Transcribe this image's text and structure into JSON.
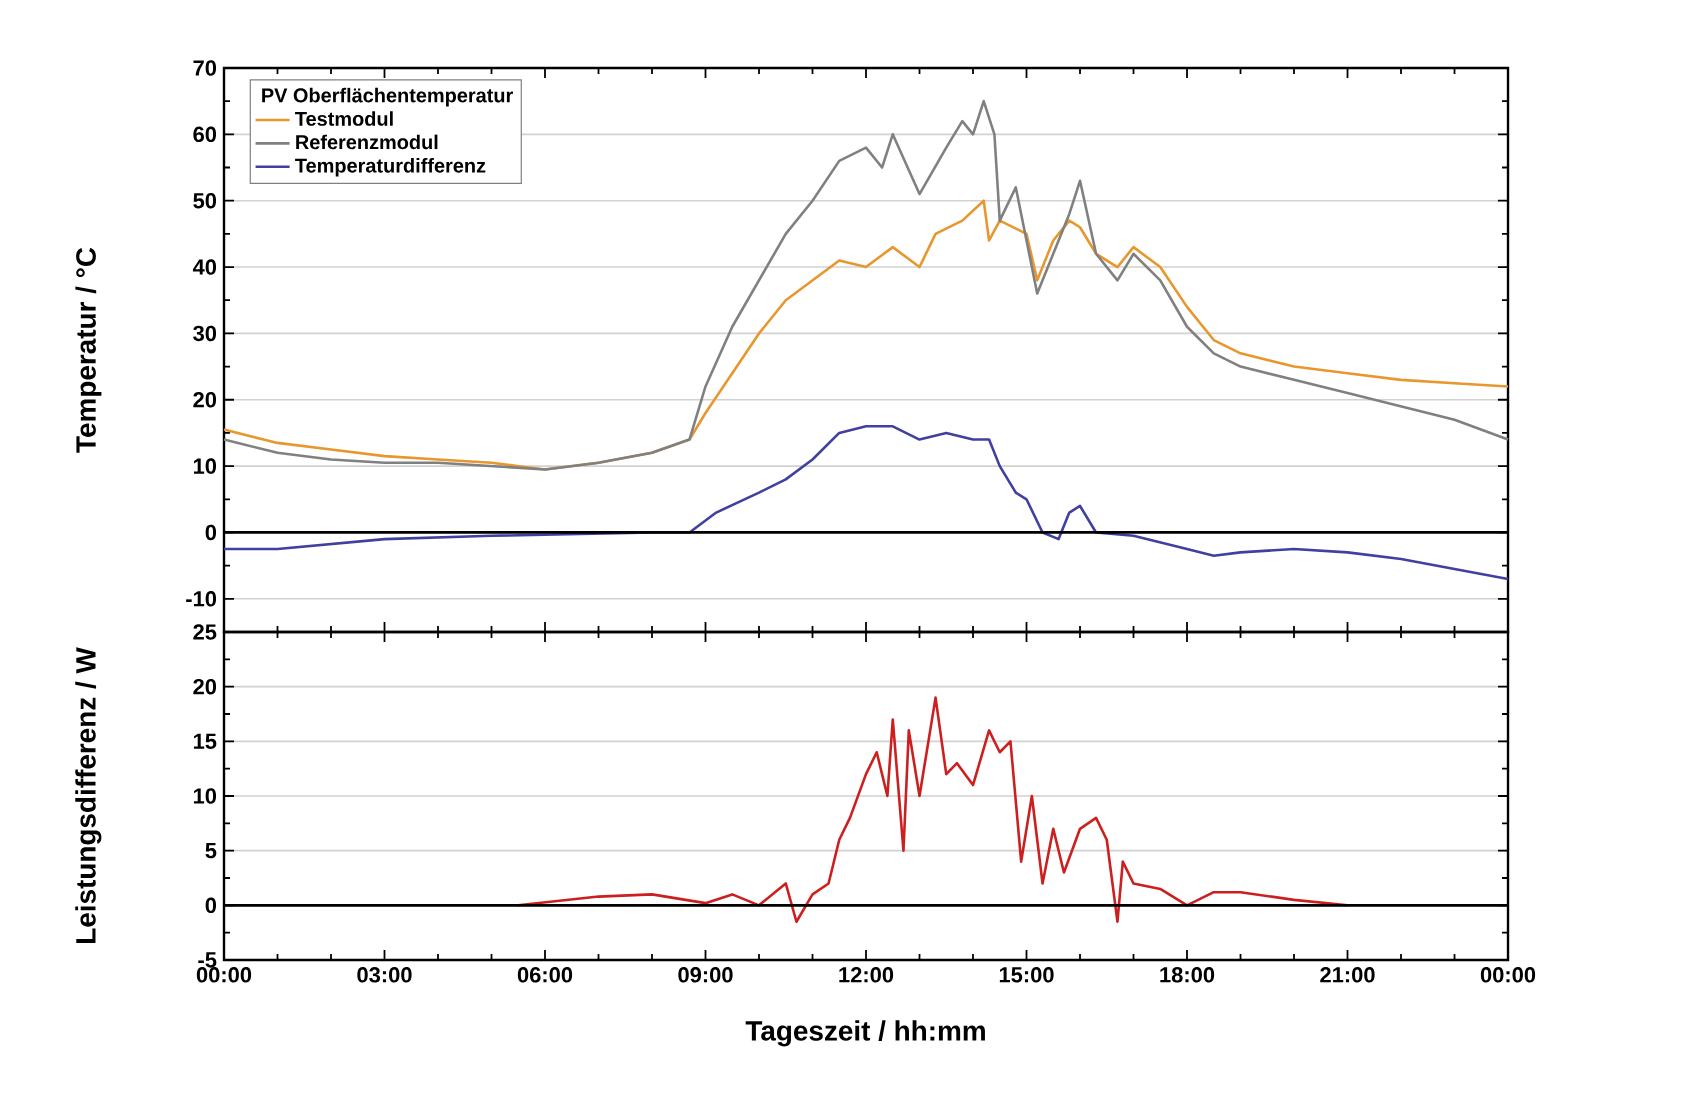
{
  "chart_data": [
    {
      "type": "line",
      "ylabel": "Temperatur / °C",
      "legend_title": "PV Oberflächentemperatur",
      "legend": "top left",
      "grid": "y",
      "tick_labels": "y",
      "line_style": "solid",
      "xlim": [
        0,
        24
      ],
      "ylim": [
        -15,
        70
      ],
      "xticks": [
        {
          "value": 0,
          "label": null
        },
        {
          "value": 3,
          "label": null
        },
        {
          "value": 6,
          "label": null
        },
        {
          "value": 9,
          "label": null
        },
        {
          "value": 12,
          "label": null
        },
        {
          "value": 15,
          "label": null
        },
        {
          "value": 18,
          "label": null
        },
        {
          "value": 21,
          "label": null
        },
        {
          "value": 24,
          "label": null
        }
      ],
      "yticks": [
        -10,
        0,
        10,
        20,
        30,
        40,
        50,
        60,
        70
      ],
      "ref_lines": [
        {
          "axis": "y",
          "value": 0,
          "color": "#000000"
        }
      ],
      "series": [
        {
          "name": "Testmodul",
          "color": "#e8962e",
          "x": [
            0,
            1,
            2,
            3,
            4,
            5,
            5.5,
            6,
            7,
            8,
            8.7,
            9,
            9.5,
            10,
            10.5,
            11,
            11.5,
            12,
            12.5,
            13,
            13.3,
            13.8,
            14.2,
            14.3,
            14.5,
            15,
            15.2,
            15.5,
            15.8,
            16,
            16.3,
            16.7,
            17,
            17.5,
            18,
            18.5,
            19,
            20,
            21,
            22,
            23,
            24
          ],
          "values": [
            15.5,
            13.5,
            12.5,
            11.5,
            11,
            10.5,
            10,
            9.5,
            10.5,
            12,
            14,
            18,
            24,
            30,
            35,
            38,
            41,
            40,
            43,
            40,
            45,
            47,
            50,
            44,
            47,
            45,
            38,
            44,
            47,
            46,
            42,
            40,
            43,
            40,
            34,
            29,
            27,
            25,
            24,
            23,
            22.5,
            22
          ]
        },
        {
          "name": "Referenzmodul",
          "color": "#808080",
          "x": [
            0,
            1,
            2,
            3,
            4,
            5,
            6,
            7,
            8,
            8.7,
            9,
            9.5,
            10,
            10.5,
            11,
            11.5,
            12,
            12.3,
            12.5,
            13,
            13.5,
            13.8,
            14,
            14.2,
            14.4,
            14.5,
            14.8,
            15,
            15.2,
            15.5,
            15.8,
            16,
            16.3,
            16.7,
            17,
            17.5,
            18,
            18.5,
            19,
            20,
            21,
            22,
            23,
            24
          ],
          "values": [
            14,
            12,
            11,
            10.5,
            10.5,
            10,
            9.5,
            10.5,
            12,
            14,
            22,
            31,
            38,
            45,
            50,
            56,
            58,
            55,
            60,
            51,
            58,
            62,
            60,
            65,
            60,
            47,
            52,
            44,
            36,
            42,
            48,
            53,
            42,
            38,
            42,
            38,
            31,
            27,
            25,
            23,
            21,
            19,
            17,
            14
          ]
        },
        {
          "name": "Temperaturdifferenz",
          "color": "#4040a0",
          "x": [
            0,
            1,
            3,
            5,
            8,
            8.7,
            9.2,
            10,
            10.5,
            11,
            11.5,
            12,
            12.5,
            13,
            13.5,
            14,
            14.3,
            14.5,
            14.8,
            15,
            15.3,
            15.6,
            15.8,
            16,
            16.3,
            17,
            18,
            18.5,
            19,
            20,
            21,
            22,
            23,
            24
          ],
          "values": [
            -2.5,
            -2.5,
            -1,
            -0.5,
            0,
            0,
            3,
            6,
            8,
            11,
            15,
            16,
            16,
            14,
            15,
            14,
            14,
            10,
            6,
            5,
            0,
            -1,
            3,
            4,
            0,
            -0.5,
            -2.5,
            -3.5,
            -3,
            -2.5,
            -3,
            -4,
            -5.5,
            -7
          ]
        }
      ]
    },
    {
      "type": "line",
      "ylabel": "Leistungsdifferenz / W",
      "xlabel": "Tageszeit / hh:mm",
      "grid": "y",
      "legend": false,
      "line_style": "solid",
      "xlim": [
        0,
        24
      ],
      "ylim": [
        -5,
        25
      ],
      "xticks": [
        {
          "value": 0,
          "label": "00:00"
        },
        {
          "value": 3,
          "label": "03:00"
        },
        {
          "value": 6,
          "label": "06:00"
        },
        {
          "value": 9,
          "label": "09:00"
        },
        {
          "value": 12,
          "label": "12:00"
        },
        {
          "value": 15,
          "label": "15:00"
        },
        {
          "value": 18,
          "label": "18:00"
        },
        {
          "value": 21,
          "label": "21:00"
        },
        {
          "value": 24,
          "label": "00:00"
        }
      ],
      "yticks": [
        -5,
        0,
        5,
        10,
        15,
        20,
        25
      ],
      "ref_lines": [
        {
          "axis": "y",
          "value": 0,
          "color": "#000000"
        }
      ],
      "series": [
        {
          "color": "#cc1f1f",
          "x": [
            5.5,
            7,
            8,
            9,
            9.5,
            10,
            10.5,
            10.7,
            11,
            11.3,
            11.5,
            11.7,
            12,
            12.2,
            12.4,
            12.5,
            12.7,
            12.8,
            13,
            13.3,
            13.5,
            13.7,
            14,
            14.3,
            14.5,
            14.7,
            14.9,
            15.1,
            15.3,
            15.5,
            15.7,
            16,
            16.3,
            16.5,
            16.7,
            16.8,
            17,
            17.5,
            18,
            18.5,
            19,
            20,
            21
          ],
          "values": [
            0,
            0.8,
            1,
            0.2,
            1,
            0,
            2,
            -1.5,
            1,
            2,
            6,
            8,
            12,
            14,
            10,
            17,
            5,
            16,
            10,
            19,
            12,
            13,
            11,
            16,
            14,
            15,
            4,
            10,
            2,
            7,
            3,
            7,
            8,
            6,
            -1.5,
            4,
            2,
            1.5,
            0,
            1.2,
            1.2,
            0.5,
            0
          ]
        }
      ]
    }
  ]
}
